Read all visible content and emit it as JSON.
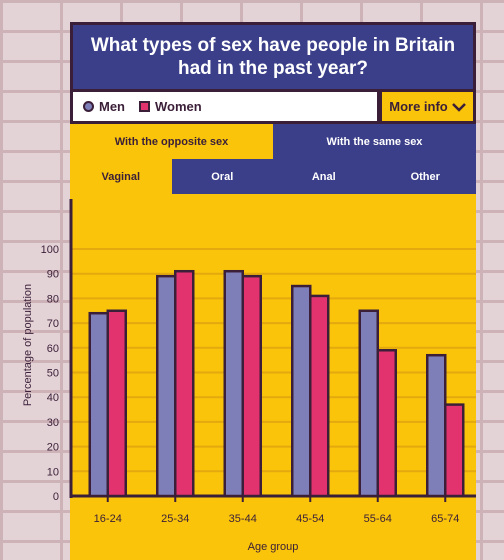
{
  "header": {
    "title": "What types of sex have people in Britain had in the past year?"
  },
  "legend": {
    "men_label": "Men",
    "women_label": "Women"
  },
  "more_info": {
    "label": "More info"
  },
  "tabs_partner": [
    {
      "label": "With the opposite sex",
      "active": true
    },
    {
      "label": "With the same sex",
      "active": false
    }
  ],
  "tabs_type": [
    {
      "label": "Vaginal",
      "active": true
    },
    {
      "label": "Oral",
      "active": false
    },
    {
      "label": "Anal",
      "active": false
    },
    {
      "label": "Other",
      "active": false
    }
  ],
  "colors": {
    "men": "#7e7fb8",
    "women": "#e3336f",
    "navy": "#3b3f8a",
    "yellow": "#f9c40a",
    "dark": "#3b1f38"
  },
  "chart_data": {
    "type": "bar",
    "categories": [
      "16-24",
      "25-34",
      "35-44",
      "45-54",
      "55-64",
      "65-74"
    ],
    "series": [
      {
        "name": "Men",
        "values": [
          74,
          89,
          91,
          85,
          75,
          57
        ]
      },
      {
        "name": "Women",
        "values": [
          75,
          91,
          89,
          81,
          59,
          37
        ]
      }
    ],
    "xlabel": "Age group",
    "ylabel": "Percentage of population",
    "ylim": [
      0,
      100
    ],
    "yticks": [
      0,
      10,
      20,
      30,
      40,
      50,
      60,
      70,
      80,
      90,
      100
    ],
    "grid": true
  }
}
